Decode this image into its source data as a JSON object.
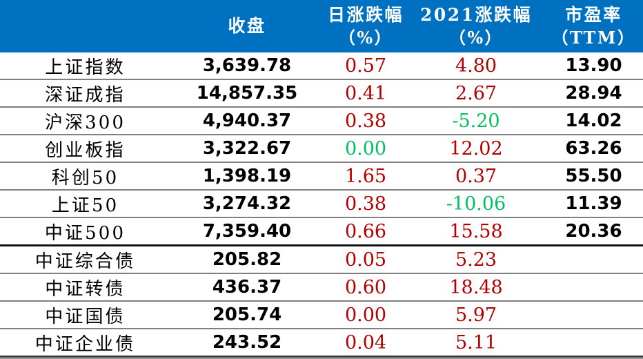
{
  "colors": {
    "header_bg": "#0070c0",
    "header_text": "#ffffff",
    "up": "#b00000",
    "down": "#00c060",
    "neutral": "#000000",
    "gridline": "#808080",
    "group_divider": "#111111",
    "bottom_border_dark": "#333333",
    "bottom_border_light": "#9a9a9a"
  },
  "table": {
    "header": {
      "name": "",
      "close": "收盘",
      "daily_line1": "日涨跌幅",
      "daily_line2": "（%）",
      "ytd_line1": "2021涨跌幅",
      "ytd_line2": "（%）",
      "pe_line1": "市盈率",
      "pe_line2": "（TTM）"
    },
    "rows": [
      {
        "name": "上证指数",
        "close": "3,639.78",
        "daily": "0.57",
        "daily_color": "up",
        "ytd": "4.80",
        "ytd_color": "up",
        "pe": "13.90",
        "group": "equity"
      },
      {
        "name": "深证成指",
        "close": "14,857.35",
        "daily": "0.41",
        "daily_color": "up",
        "ytd": "2.67",
        "ytd_color": "up",
        "pe": "28.94",
        "group": "equity"
      },
      {
        "name": "沪深300",
        "close": "4,940.37",
        "daily": "0.38",
        "daily_color": "up",
        "ytd": "-5.20",
        "ytd_color": "down",
        "pe": "14.02",
        "group": "equity"
      },
      {
        "name": "创业板指",
        "close": "3,322.67",
        "daily": "0.00",
        "daily_color": "down",
        "ytd": "12.02",
        "ytd_color": "up",
        "pe": "63.26",
        "group": "equity"
      },
      {
        "name": "科创50",
        "close": "1,398.19",
        "daily": "1.65",
        "daily_color": "up",
        "ytd": "0.37",
        "ytd_color": "up",
        "pe": "55.50",
        "group": "equity"
      },
      {
        "name": "上证50",
        "close": "3,274.32",
        "daily": "0.38",
        "daily_color": "up",
        "ytd": "-10.06",
        "ytd_color": "down",
        "pe": "11.39",
        "group": "equity"
      },
      {
        "name": "中证500",
        "close": "7,359.40",
        "daily": "0.66",
        "daily_color": "up",
        "ytd": "15.58",
        "ytd_color": "up",
        "pe": "20.36",
        "group": "equity",
        "divider_after": "thick"
      },
      {
        "name": "中证综合债",
        "close": "205.82",
        "daily": "0.05",
        "daily_color": "up",
        "ytd": "5.23",
        "ytd_color": "up",
        "pe": "",
        "group": "bond"
      },
      {
        "name": "中证转债",
        "close": "436.37",
        "daily": "0.60",
        "daily_color": "up",
        "ytd": "18.48",
        "ytd_color": "up",
        "pe": "",
        "group": "bond"
      },
      {
        "name": "中证国债",
        "close": "205.74",
        "daily": "0.00",
        "daily_color": "up",
        "ytd": "5.97",
        "ytd_color": "up",
        "pe": "",
        "group": "bond"
      },
      {
        "name": "中证企业债",
        "close": "243.52",
        "daily": "0.04",
        "daily_color": "up",
        "ytd": "5.11",
        "ytd_color": "up",
        "pe": "",
        "group": "bond"
      }
    ]
  },
  "chart_data": {
    "type": "table",
    "columns": [
      "",
      "收盘",
      "日涨跌幅（%）",
      "2021涨跌幅（%）",
      "市盈率（TTM）"
    ],
    "rows": [
      [
        "上证指数",
        3639.78,
        0.57,
        4.8,
        13.9
      ],
      [
        "深证成指",
        14857.35,
        0.41,
        2.67,
        28.94
      ],
      [
        "沪深300",
        4940.37,
        0.38,
        -5.2,
        14.02
      ],
      [
        "创业板指",
        3322.67,
        0.0,
        12.02,
        63.26
      ],
      [
        "科创50",
        1398.19,
        1.65,
        0.37,
        55.5
      ],
      [
        "上证50",
        3274.32,
        0.38,
        -10.06,
        11.39
      ],
      [
        "中证500",
        7359.4,
        0.66,
        15.58,
        20.36
      ],
      [
        "中证综合债",
        205.82,
        0.05,
        5.23,
        null
      ],
      [
        "中证转债",
        436.37,
        0.6,
        18.48,
        null
      ],
      [
        "中证国债",
        205.74,
        0.0,
        5.97,
        null
      ],
      [
        "中证企业债",
        243.52,
        0.04,
        5.11,
        null
      ]
    ],
    "layout_hints": {
      "value_color_rule": "positive/zero shown dark red, negative shown green (bond zero also red)",
      "group_divider_after_row": "中证500",
      "header_background": "#0070c0"
    }
  }
}
